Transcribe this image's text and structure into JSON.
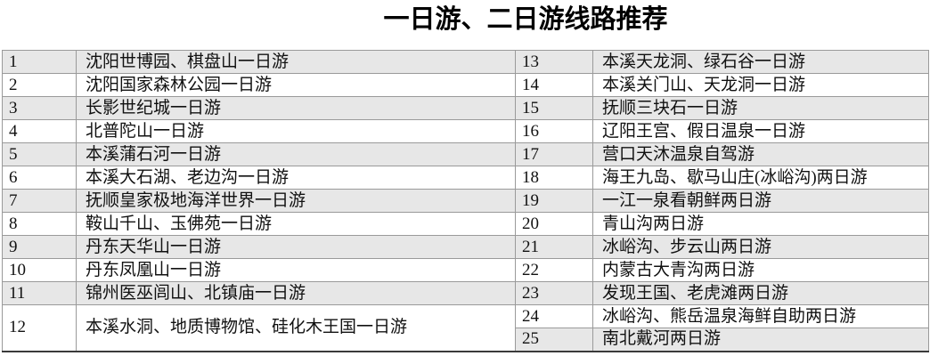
{
  "title": "一日游、二日游线路推荐",
  "colors": {
    "row_shade": "#e7e7e7",
    "border": "#9a9a9a",
    "bottom_border": "#3a3a3a",
    "text": "#111111"
  },
  "table": {
    "left_rows": [
      {
        "num": "1",
        "text": "沈阳世博园、棋盘山一日游"
      },
      {
        "num": "2",
        "text": "沈阳国家森林公园一日游"
      },
      {
        "num": "3",
        "text": "长影世纪城一日游"
      },
      {
        "num": "4",
        "text": "北普陀山一日游"
      },
      {
        "num": "5",
        "text": "本溪蒲石河一日游"
      },
      {
        "num": "6",
        "text": "本溪大石湖、老边沟一日游"
      },
      {
        "num": "7",
        "text": "抚顺皇家极地海洋世界一日游"
      },
      {
        "num": "8",
        "text": "鞍山千山、玉佛苑一日游"
      },
      {
        "num": "9",
        "text": "丹东天华山一日游"
      },
      {
        "num": "10",
        "text": "丹东凤凰山一日游"
      },
      {
        "num": "11",
        "text": "锦州医巫闾山、北镇庙一日游"
      },
      {
        "num": "12",
        "text": "本溪水洞、地质博物馆、硅化木王国一日游"
      }
    ],
    "right_rows": [
      {
        "num": "13",
        "text": "本溪天龙洞、绿石谷一日游"
      },
      {
        "num": "14",
        "text": "本溪关门山、天龙洞一日游"
      },
      {
        "num": "15",
        "text": "抚顺三块石一日游"
      },
      {
        "num": "16",
        "text": "辽阳王宫、假日温泉一日游"
      },
      {
        "num": "17",
        "text": "营口天沐温泉自驾游"
      },
      {
        "num": "18",
        "text": "海王九岛、歇马山庄(冰峪沟)两日游"
      },
      {
        "num": "19",
        "text": "一江一泉看朝鲜两日游"
      },
      {
        "num": "20",
        "text": "青山沟两日游"
      },
      {
        "num": "21",
        "text": "冰峪沟、步云山两日游"
      },
      {
        "num": "22",
        "text": "内蒙古大青沟两日游"
      },
      {
        "num": "23",
        "text": "发现王国、老虎滩两日游"
      },
      {
        "num": "24",
        "text": "冰峪沟、熊岳温泉海鲜自助两日游"
      },
      {
        "num": "25",
        "text": "南北戴河两日游"
      }
    ]
  }
}
